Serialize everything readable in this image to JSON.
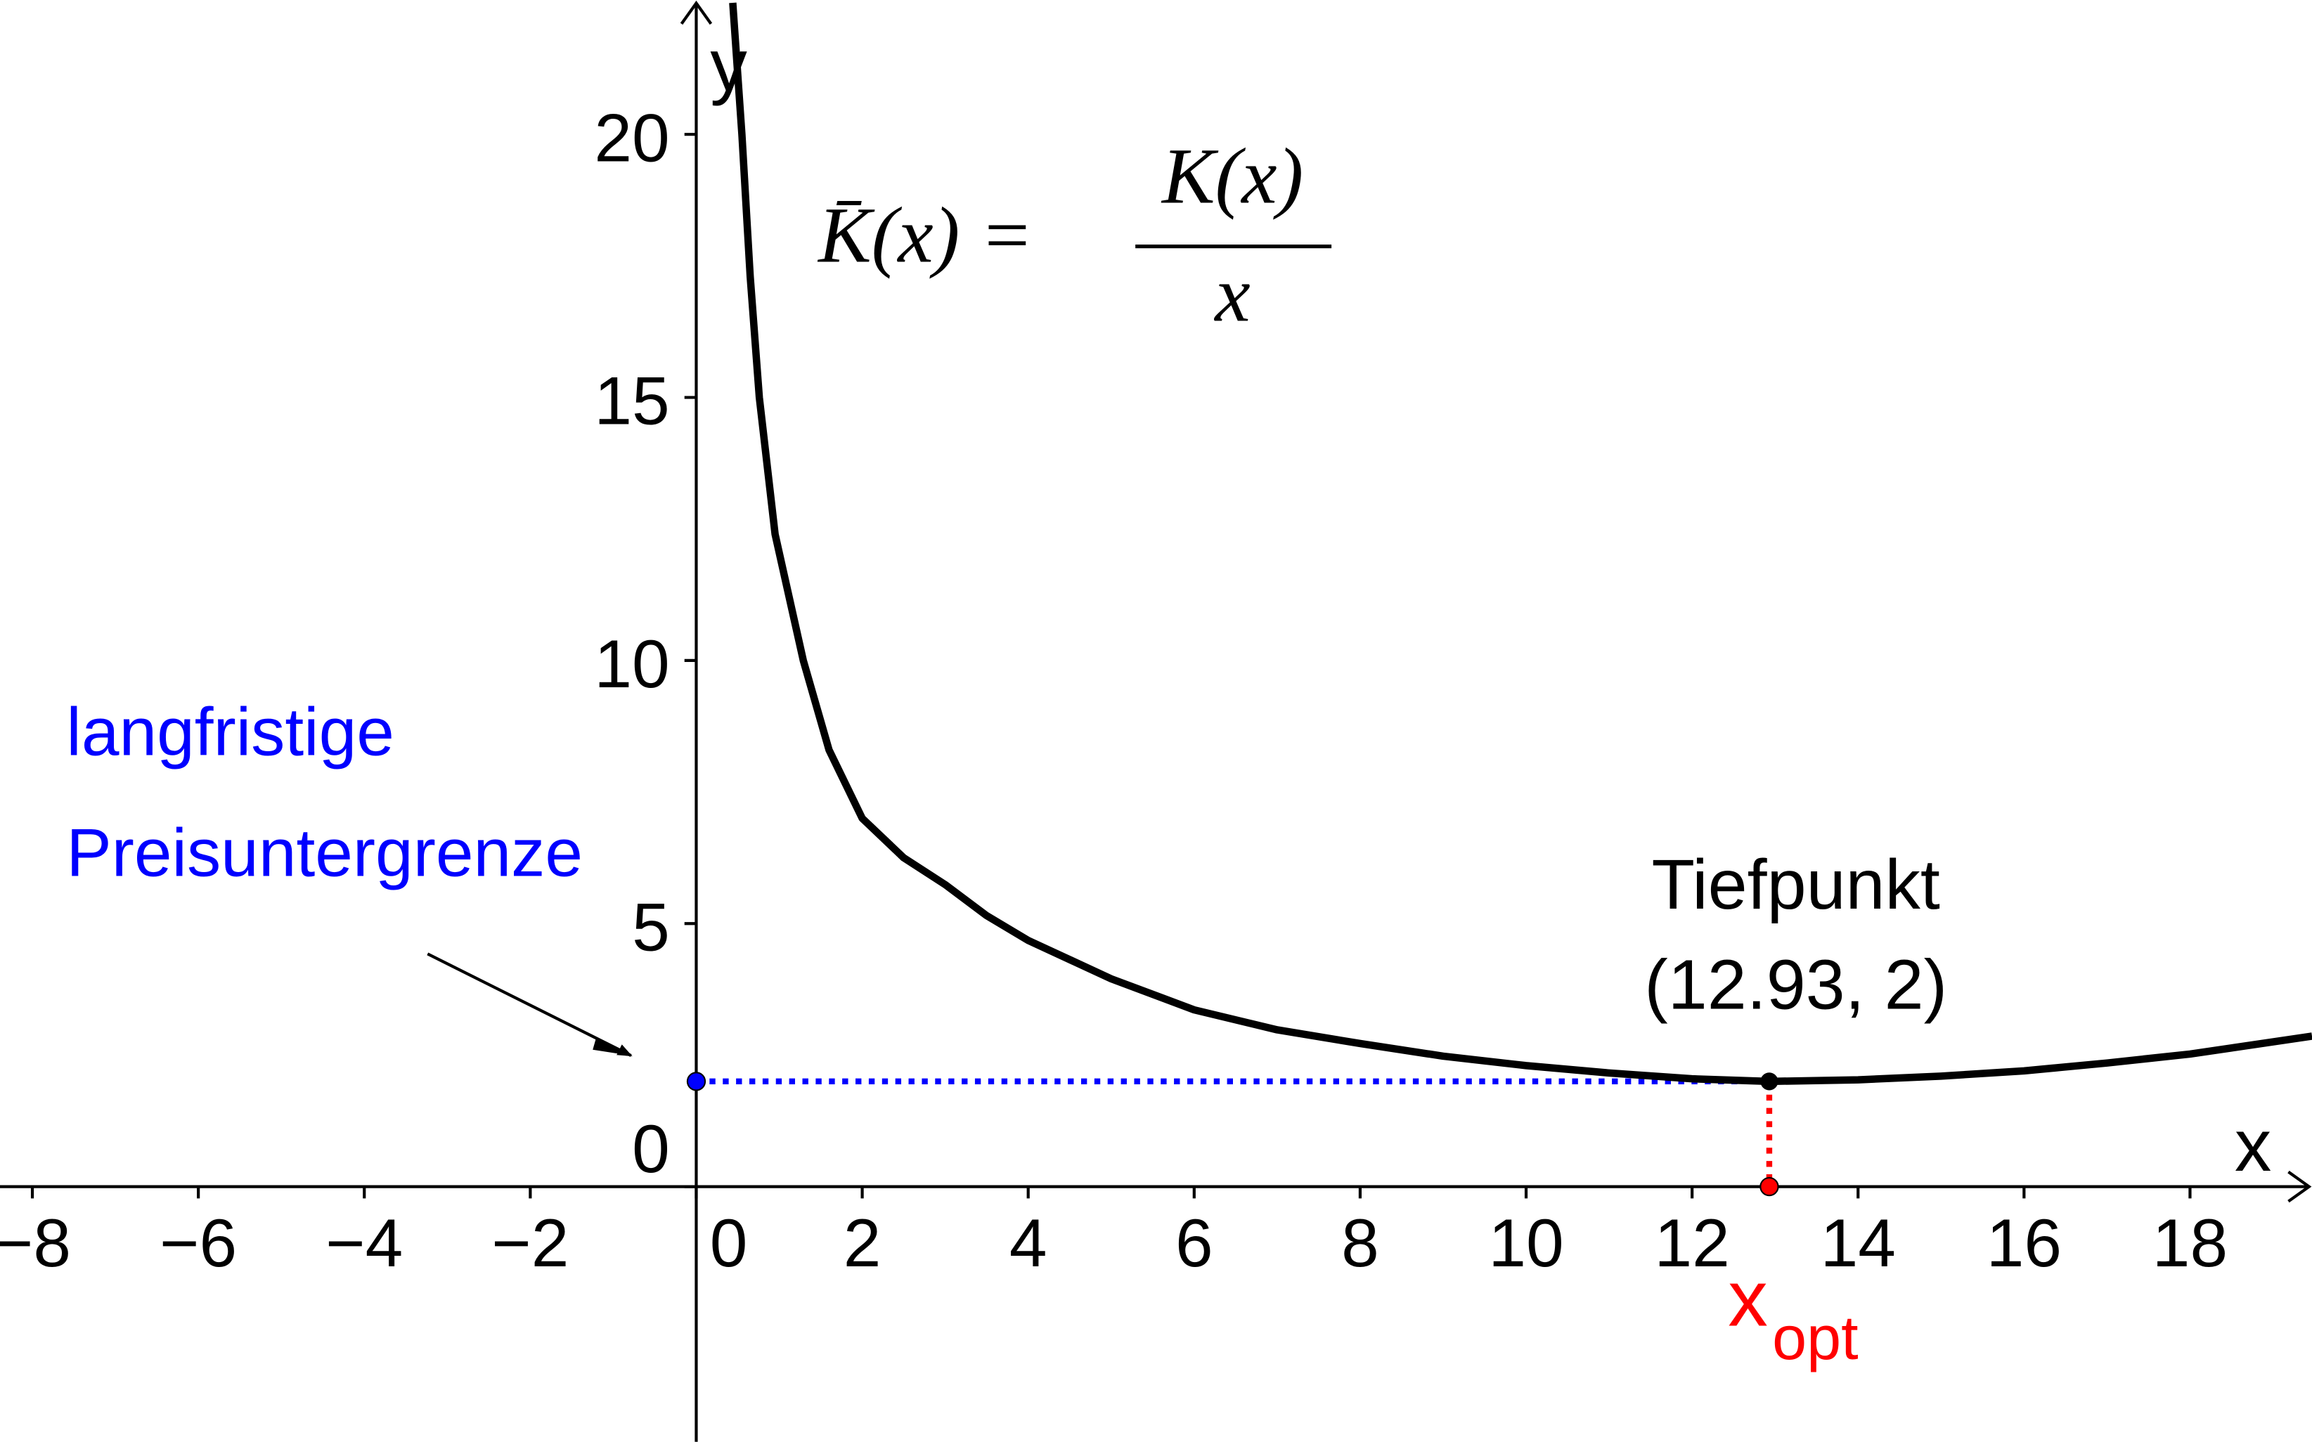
{
  "chart_data": {
    "type": "line",
    "xlabel": "x",
    "ylabel": "y",
    "formula": {
      "lhs": "K̄(x) =",
      "numerator": "K(x)",
      "denominator": "x"
    },
    "series": [
      {
        "color": "#000000",
        "x": [
          0.44,
          0.55,
          0.65,
          0.76,
          0.95,
          1.29,
          1.6,
          2,
          2.5,
          3,
          3.5,
          4,
          5,
          6,
          7,
          8,
          9,
          10,
          11,
          12,
          12.93,
          14,
          15,
          16,
          17,
          18,
          19.47
        ],
        "values": [
          22.5,
          20,
          17.3,
          15,
          12.4,
          10,
          8.3,
          7.0,
          6.25,
          5.74,
          5.15,
          4.68,
          3.95,
          3.36,
          2.98,
          2.72,
          2.48,
          2.3,
          2.16,
          2.05,
          2,
          2.03,
          2.1,
          2.2,
          2.35,
          2.52,
          2.86
        ]
      }
    ],
    "minimum": {
      "x": 12.93,
      "y": 2,
      "color": "#000000",
      "label": [
        "Tiefpunkt",
        "(12.93, 2)"
      ]
    },
    "x_opt": {
      "label": "x",
      "subscript": "opt",
      "color": "#ff0000"
    },
    "price_floor": {
      "label": [
        "langfristige",
        "Preisuntergrenze"
      ],
      "color": "#0000ff"
    },
    "xlim": [
      -8.39,
      19.47
    ],
    "ylim": [
      -4.85,
      22.55
    ],
    "xticks": [
      {
        "value": -8,
        "label": "−8"
      },
      {
        "value": -6,
        "label": "−6"
      },
      {
        "value": -4,
        "label": "−4"
      },
      {
        "value": -2,
        "label": "−2"
      },
      0,
      2,
      4,
      6,
      8,
      10,
      12,
      14,
      16,
      18
    ],
    "yticks": [
      0,
      5,
      10,
      15,
      20
    ]
  }
}
